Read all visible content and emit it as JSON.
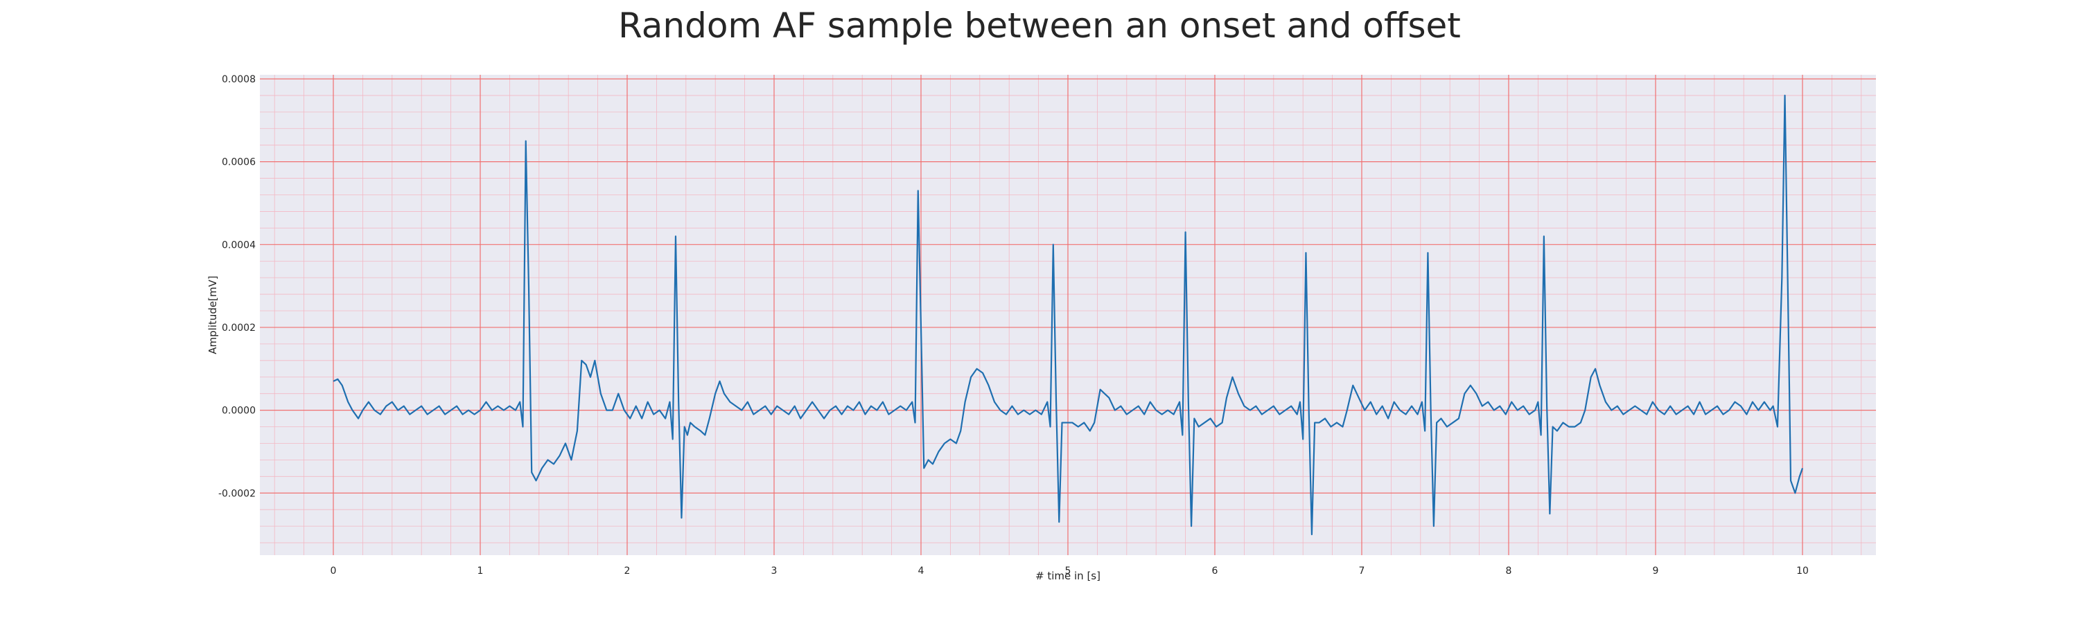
{
  "chart_data": {
    "type": "line",
    "title": "Random AF sample between an onset and offset",
    "xlabel": "# time in [s]",
    "ylabel": "Amplitude[mV]",
    "xlim": [
      -0.5,
      10.5
    ],
    "ylim": [
      -0.00035,
      0.00081
    ],
    "xticks": [
      0,
      1,
      2,
      3,
      4,
      5,
      6,
      7,
      8,
      9,
      10
    ],
    "xtick_labels": [
      "0",
      "1",
      "2",
      "3",
      "4",
      "5",
      "6",
      "7",
      "8",
      "9",
      "10"
    ],
    "yticks": [
      -0.0002,
      0.0,
      0.0002,
      0.0004,
      0.0006,
      0.0008
    ],
    "ytick_labels": [
      "-0.0002",
      "0.0000",
      "0.0002",
      "0.0004",
      "0.0006",
      "0.0008"
    ],
    "grid": true,
    "minor_grid": true,
    "colors": {
      "background": "#eaeaf2",
      "major_grid": "#f07070",
      "minor_grid": "#f3b8c4",
      "line": "#1f6fb0",
      "text": "#262626"
    },
    "series": [
      {
        "points": [
          [
            0.0,
            7e-05
          ],
          [
            0.03,
            7.5e-05
          ],
          [
            0.06,
            6e-05
          ],
          [
            0.1,
            2e-05
          ],
          [
            0.13,
            0.0
          ],
          [
            0.17,
            -2e-05
          ],
          [
            0.2,
            0.0
          ],
          [
            0.24,
            2e-05
          ],
          [
            0.28,
            0.0
          ],
          [
            0.32,
            -1e-05
          ],
          [
            0.36,
            1e-05
          ],
          [
            0.4,
            2e-05
          ],
          [
            0.44,
            0.0
          ],
          [
            0.48,
            1e-05
          ],
          [
            0.52,
            -1e-05
          ],
          [
            0.56,
            0.0
          ],
          [
            0.6,
            1e-05
          ],
          [
            0.64,
            -1e-05
          ],
          [
            0.68,
            0.0
          ],
          [
            0.72,
            1e-05
          ],
          [
            0.76,
            -1e-05
          ],
          [
            0.8,
            0.0
          ],
          [
            0.84,
            1e-05
          ],
          [
            0.88,
            -1e-05
          ],
          [
            0.92,
            0.0
          ],
          [
            0.96,
            -1e-05
          ],
          [
            1.0,
            0.0
          ],
          [
            1.04,
            2e-05
          ],
          [
            1.08,
            0.0
          ],
          [
            1.12,
            1e-05
          ],
          [
            1.16,
            0.0
          ],
          [
            1.2,
            1e-05
          ],
          [
            1.24,
            0.0
          ],
          [
            1.27,
            2e-05
          ],
          [
            1.29,
            -4e-05
          ],
          [
            1.31,
            0.00065
          ],
          [
            1.33,
            0.0003
          ],
          [
            1.35,
            -0.00015
          ],
          [
            1.38,
            -0.00017
          ],
          [
            1.42,
            -0.00014
          ],
          [
            1.46,
            -0.00012
          ],
          [
            1.5,
            -0.00013
          ],
          [
            1.54,
            -0.00011
          ],
          [
            1.58,
            -8e-05
          ],
          [
            1.62,
            -0.00012
          ],
          [
            1.66,
            -5e-05
          ],
          [
            1.69,
            0.00012
          ],
          [
            1.72,
            0.00011
          ],
          [
            1.75,
            8e-05
          ],
          [
            1.78,
            0.00012
          ],
          [
            1.82,
            4e-05
          ],
          [
            1.86,
            0.0
          ],
          [
            1.9,
            0.0
          ],
          [
            1.94,
            4e-05
          ],
          [
            1.98,
            0.0
          ],
          [
            2.02,
            -2e-05
          ],
          [
            2.06,
            1e-05
          ],
          [
            2.1,
            -2e-05
          ],
          [
            2.14,
            2e-05
          ],
          [
            2.18,
            -1e-05
          ],
          [
            2.22,
            0.0
          ],
          [
            2.26,
            -2e-05
          ],
          [
            2.29,
            2e-05
          ],
          [
            2.31,
            -7e-05
          ],
          [
            2.33,
            0.00042
          ],
          [
            2.35,
            2e-05
          ],
          [
            2.37,
            -0.00026
          ],
          [
            2.39,
            -4e-05
          ],
          [
            2.41,
            -6e-05
          ],
          [
            2.43,
            -3e-05
          ],
          [
            2.46,
            -4e-05
          ],
          [
            2.5,
            -5e-05
          ],
          [
            2.53,
            -6e-05
          ],
          [
            2.56,
            -2e-05
          ],
          [
            2.6,
            4e-05
          ],
          [
            2.63,
            7e-05
          ],
          [
            2.66,
            4e-05
          ],
          [
            2.7,
            2e-05
          ],
          [
            2.74,
            1e-05
          ],
          [
            2.78,
            0.0
          ],
          [
            2.82,
            2e-05
          ],
          [
            2.86,
            -1e-05
          ],
          [
            2.9,
            0.0
          ],
          [
            2.94,
            1e-05
          ],
          [
            2.98,
            -1e-05
          ],
          [
            3.02,
            1e-05
          ],
          [
            3.06,
            0.0
          ],
          [
            3.1,
            -1e-05
          ],
          [
            3.14,
            1e-05
          ],
          [
            3.18,
            -2e-05
          ],
          [
            3.22,
            0.0
          ],
          [
            3.26,
            2e-05
          ],
          [
            3.3,
            0.0
          ],
          [
            3.34,
            -2e-05
          ],
          [
            3.38,
            0.0
          ],
          [
            3.42,
            1e-05
          ],
          [
            3.46,
            -1e-05
          ],
          [
            3.5,
            1e-05
          ],
          [
            3.54,
            0.0
          ],
          [
            3.58,
            2e-05
          ],
          [
            3.62,
            -1e-05
          ],
          [
            3.66,
            1e-05
          ],
          [
            3.7,
            0.0
          ],
          [
            3.74,
            2e-05
          ],
          [
            3.78,
            -1e-05
          ],
          [
            3.82,
            0.0
          ],
          [
            3.86,
            1e-05
          ],
          [
            3.9,
            0.0
          ],
          [
            3.94,
            2e-05
          ],
          [
            3.96,
            -3e-05
          ],
          [
            3.98,
            0.00053
          ],
          [
            4.0,
            0.0002
          ],
          [
            4.02,
            -0.00014
          ],
          [
            4.05,
            -0.00012
          ],
          [
            4.08,
            -0.00013
          ],
          [
            4.12,
            -0.0001
          ],
          [
            4.16,
            -8e-05
          ],
          [
            4.2,
            -7e-05
          ],
          [
            4.24,
            -8e-05
          ],
          [
            4.27,
            -5e-05
          ],
          [
            4.3,
            2e-05
          ],
          [
            4.34,
            8e-05
          ],
          [
            4.38,
            0.0001
          ],
          [
            4.42,
            9e-05
          ],
          [
            4.46,
            6e-05
          ],
          [
            4.5,
            2e-05
          ],
          [
            4.54,
            0.0
          ],
          [
            4.58,
            -1e-05
          ],
          [
            4.62,
            1e-05
          ],
          [
            4.66,
            -1e-05
          ],
          [
            4.7,
            0.0
          ],
          [
            4.74,
            -1e-05
          ],
          [
            4.78,
            0.0
          ],
          [
            4.82,
            -1e-05
          ],
          [
            4.86,
            2e-05
          ],
          [
            4.88,
            -4e-05
          ],
          [
            4.9,
            0.0004
          ],
          [
            4.92,
            2e-05
          ],
          [
            4.94,
            -0.00027
          ],
          [
            4.96,
            -3e-05
          ],
          [
            4.99,
            -3e-05
          ],
          [
            5.03,
            -3e-05
          ],
          [
            5.07,
            -4e-05
          ],
          [
            5.11,
            -3e-05
          ],
          [
            5.15,
            -5e-05
          ],
          [
            5.18,
            -3e-05
          ],
          [
            5.22,
            5e-05
          ],
          [
            5.25,
            4e-05
          ],
          [
            5.28,
            3e-05
          ],
          [
            5.32,
            0.0
          ],
          [
            5.36,
            1e-05
          ],
          [
            5.4,
            -1e-05
          ],
          [
            5.44,
            0.0
          ],
          [
            5.48,
            1e-05
          ],
          [
            5.52,
            -1e-05
          ],
          [
            5.56,
            2e-05
          ],
          [
            5.6,
            0.0
          ],
          [
            5.64,
            -1e-05
          ],
          [
            5.68,
            0.0
          ],
          [
            5.72,
            -1e-05
          ],
          [
            5.76,
            2e-05
          ],
          [
            5.78,
            -6e-05
          ],
          [
            5.8,
            0.00043
          ],
          [
            5.82,
            2e-05
          ],
          [
            5.84,
            -0.00028
          ],
          [
            5.86,
            -2e-05
          ],
          [
            5.89,
            -4e-05
          ],
          [
            5.93,
            -3e-05
          ],
          [
            5.97,
            -2e-05
          ],
          [
            6.01,
            -4e-05
          ],
          [
            6.05,
            -3e-05
          ],
          [
            6.08,
            3e-05
          ],
          [
            6.12,
            8e-05
          ],
          [
            6.16,
            4e-05
          ],
          [
            6.2,
            1e-05
          ],
          [
            6.24,
            0.0
          ],
          [
            6.28,
            1e-05
          ],
          [
            6.32,
            -1e-05
          ],
          [
            6.36,
            0.0
          ],
          [
            6.4,
            1e-05
          ],
          [
            6.44,
            -1e-05
          ],
          [
            6.48,
            0.0
          ],
          [
            6.52,
            1e-05
          ],
          [
            6.56,
            -1e-05
          ],
          [
            6.58,
            2e-05
          ],
          [
            6.6,
            -7e-05
          ],
          [
            6.62,
            0.00038
          ],
          [
            6.64,
            0.0
          ],
          [
            6.66,
            -0.0003
          ],
          [
            6.68,
            -3e-05
          ],
          [
            6.71,
            -3e-05
          ],
          [
            6.75,
            -2e-05
          ],
          [
            6.79,
            -4e-05
          ],
          [
            6.83,
            -3e-05
          ],
          [
            6.87,
            -4e-05
          ],
          [
            6.9,
            0.0
          ],
          [
            6.94,
            6e-05
          ],
          [
            6.98,
            3e-05
          ],
          [
            7.02,
            0.0
          ],
          [
            7.06,
            2e-05
          ],
          [
            7.1,
            -1e-05
          ],
          [
            7.14,
            1e-05
          ],
          [
            7.18,
            -2e-05
          ],
          [
            7.22,
            2e-05
          ],
          [
            7.26,
            0.0
          ],
          [
            7.3,
            -1e-05
          ],
          [
            7.34,
            1e-05
          ],
          [
            7.38,
            -1e-05
          ],
          [
            7.41,
            2e-05
          ],
          [
            7.43,
            -5e-05
          ],
          [
            7.45,
            0.00038
          ],
          [
            7.47,
            0.0
          ],
          [
            7.49,
            -0.00028
          ],
          [
            7.51,
            -3e-05
          ],
          [
            7.54,
            -2e-05
          ],
          [
            7.58,
            -4e-05
          ],
          [
            7.62,
            -3e-05
          ],
          [
            7.66,
            -2e-05
          ],
          [
            7.7,
            4e-05
          ],
          [
            7.74,
            6e-05
          ],
          [
            7.78,
            4e-05
          ],
          [
            7.82,
            1e-05
          ],
          [
            7.86,
            2e-05
          ],
          [
            7.9,
            0.0
          ],
          [
            7.94,
            1e-05
          ],
          [
            7.98,
            -1e-05
          ],
          [
            8.02,
            2e-05
          ],
          [
            8.06,
            0.0
          ],
          [
            8.1,
            1e-05
          ],
          [
            8.14,
            -1e-05
          ],
          [
            8.18,
            0.0
          ],
          [
            8.2,
            2e-05
          ],
          [
            8.22,
            -6e-05
          ],
          [
            8.24,
            0.00042
          ],
          [
            8.26,
            1e-05
          ],
          [
            8.28,
            -0.00025
          ],
          [
            8.3,
            -4e-05
          ],
          [
            8.33,
            -5e-05
          ],
          [
            8.37,
            -3e-05
          ],
          [
            8.41,
            -4e-05
          ],
          [
            8.45,
            -4e-05
          ],
          [
            8.49,
            -3e-05
          ],
          [
            8.52,
            0.0
          ],
          [
            8.56,
            8e-05
          ],
          [
            8.59,
            0.0001
          ],
          [
            8.62,
            6e-05
          ],
          [
            8.66,
            2e-05
          ],
          [
            8.7,
            0.0
          ],
          [
            8.74,
            1e-05
          ],
          [
            8.78,
            -1e-05
          ],
          [
            8.82,
            0.0
          ],
          [
            8.86,
            1e-05
          ],
          [
            8.9,
            0.0
          ],
          [
            8.94,
            -1e-05
          ],
          [
            8.98,
            2e-05
          ],
          [
            9.02,
            0.0
          ],
          [
            9.06,
            -1e-05
          ],
          [
            9.1,
            1e-05
          ],
          [
            9.14,
            -1e-05
          ],
          [
            9.18,
            0.0
          ],
          [
            9.22,
            1e-05
          ],
          [
            9.26,
            -1e-05
          ],
          [
            9.3,
            2e-05
          ],
          [
            9.34,
            -1e-05
          ],
          [
            9.38,
            0.0
          ],
          [
            9.42,
            1e-05
          ],
          [
            9.46,
            -1e-05
          ],
          [
            9.5,
            0.0
          ],
          [
            9.54,
            2e-05
          ],
          [
            9.58,
            1e-05
          ],
          [
            9.62,
            -1e-05
          ],
          [
            9.66,
            2e-05
          ],
          [
            9.7,
            0.0
          ],
          [
            9.74,
            2e-05
          ],
          [
            9.78,
            0.0
          ],
          [
            9.8,
            1e-05
          ],
          [
            9.83,
            -4e-05
          ],
          [
            9.86,
            0.00032
          ],
          [
            9.88,
            0.00076
          ],
          [
            9.9,
            0.0003
          ],
          [
            9.92,
            -0.00017
          ],
          [
            9.95,
            -0.0002
          ],
          [
            9.98,
            -0.00016
          ],
          [
            10.0,
            -0.00014
          ]
        ]
      }
    ]
  }
}
